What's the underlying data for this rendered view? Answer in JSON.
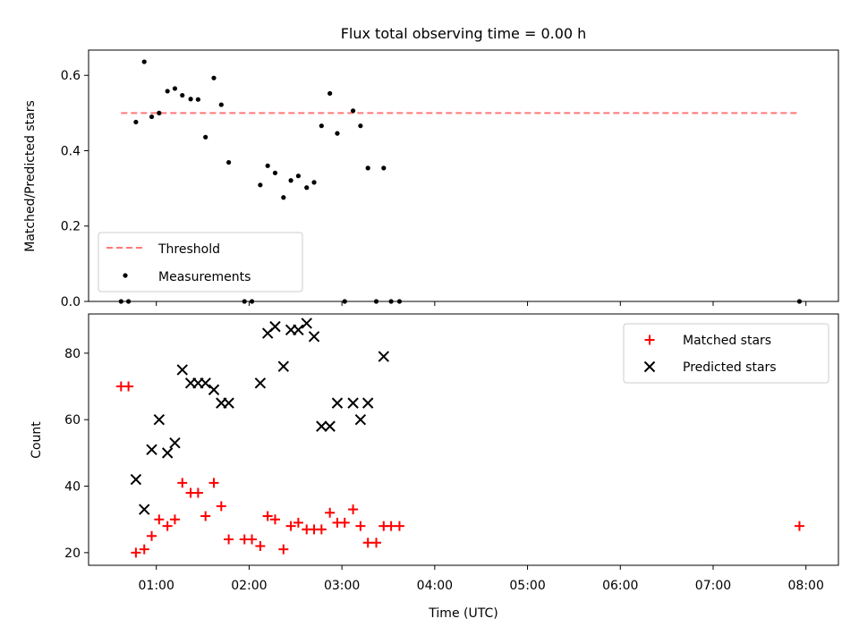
{
  "figure": {
    "title": "Flux total observing time = 0.00 h"
  },
  "chart_data": [
    {
      "type": "scatter",
      "ylabel": "Matched/Predicted stars",
      "xlabel": "",
      "xlim": [
        0.27,
        8.35
      ],
      "ylim": [
        0,
        0.667
      ],
      "yticks": [
        0.0,
        0.2,
        0.4,
        0.6
      ],
      "ytick_labels": [
        "0.0",
        "0.2",
        "0.4",
        "0.6"
      ],
      "grid": false,
      "legend_position": "lower-left",
      "threshold": {
        "name": "Threshold",
        "value": 0.5,
        "x_start": 0.62,
        "x_end": 7.93,
        "color": "#ff7777"
      },
      "series": [
        {
          "name": "Measurements",
          "color": "#000000",
          "x": [
            0.62,
            0.7,
            0.78,
            0.87,
            0.95,
            1.03,
            1.12,
            1.2,
            1.28,
            1.37,
            1.45,
            1.53,
            1.62,
            1.7,
            1.78,
            1.95,
            2.03,
            2.12,
            2.2,
            2.28,
            2.37,
            2.45,
            2.53,
            2.62,
            2.7,
            2.78,
            2.87,
            2.95,
            3.03,
            3.12,
            3.2,
            3.28,
            3.37,
            3.45,
            3.53,
            3.62,
            7.93
          ],
          "y": [
            0.0,
            0.0,
            0.476,
            0.636,
            0.49,
            0.5,
            0.558,
            0.565,
            0.547,
            0.537,
            0.536,
            0.436,
            0.593,
            0.522,
            0.369,
            0.0,
            0.0,
            0.309,
            0.36,
            0.341,
            0.276,
            0.321,
            0.333,
            0.302,
            0.316,
            0.466,
            0.552,
            0.446,
            0.0,
            0.506,
            0.466,
            0.354,
            0.0,
            0.354,
            0.0,
            0.0,
            0.0
          ]
        }
      ]
    },
    {
      "type": "scatter",
      "ylabel": "Count",
      "xlabel": "Time (UTC)",
      "xlim": [
        0.27,
        8.35
      ],
      "ylim": [
        16.2,
        91.8
      ],
      "yticks": [
        20,
        40,
        60,
        80
      ],
      "ytick_labels": [
        "20",
        "40",
        "60",
        "80"
      ],
      "xticks": [
        1,
        2,
        3,
        4,
        5,
        6,
        7,
        8
      ],
      "xtick_labels": [
        "01:00",
        "02:00",
        "03:00",
        "04:00",
        "05:00",
        "06:00",
        "07:00",
        "08:00"
      ],
      "grid": false,
      "legend_position": "upper-right",
      "series": [
        {
          "name": "Matched stars",
          "marker": "+",
          "color": "#ff0000",
          "x": [
            0.62,
            0.7,
            0.78,
            0.87,
            0.95,
            1.03,
            1.12,
            1.2,
            1.28,
            1.37,
            1.45,
            1.53,
            1.62,
            1.7,
            1.78,
            1.95,
            2.03,
            2.12,
            2.2,
            2.28,
            2.37,
            2.45,
            2.53,
            2.62,
            2.7,
            2.78,
            2.87,
            2.95,
            3.03,
            3.12,
            3.2,
            3.28,
            3.37,
            3.45,
            3.53,
            3.62,
            7.93
          ],
          "y": [
            70,
            70,
            20,
            21,
            25,
            30,
            28,
            30,
            41,
            38,
            38,
            31,
            41,
            34,
            24,
            24,
            24,
            22,
            31,
            30,
            21,
            28,
            29,
            27,
            27,
            27,
            32,
            29,
            29,
            33,
            28,
            23,
            23,
            28,
            28,
            28,
            28
          ]
        },
        {
          "name": "Predicted stars",
          "marker": "x",
          "color": "#000000",
          "x": [
            0.78,
            0.87,
            0.95,
            1.03,
            1.12,
            1.2,
            1.28,
            1.37,
            1.45,
            1.53,
            1.62,
            1.7,
            1.78,
            2.12,
            2.2,
            2.28,
            2.37,
            2.45,
            2.53,
            2.62,
            2.7,
            2.78,
            2.87,
            2.95,
            3.12,
            3.2,
            3.28,
            3.45
          ],
          "y": [
            42,
            33,
            51,
            60,
            50,
            53,
            75,
            71,
            71,
            71,
            69,
            65,
            65,
            71,
            86,
            88,
            76,
            87,
            87,
            89,
            85,
            58,
            58,
            65,
            65,
            60,
            65,
            79
          ]
        }
      ]
    }
  ]
}
